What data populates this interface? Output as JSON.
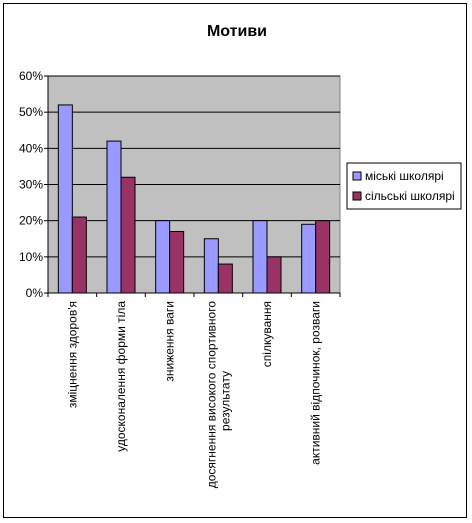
{
  "chart_data": {
    "type": "bar",
    "title": "Мотиви",
    "categories": [
      "зміцнення здоров'я",
      "удосконалення форми тіла",
      "зниження ваги",
      "досягнення високого спортивного результату",
      "спілкування",
      "активний відпочинок, розваги"
    ],
    "series": [
      {
        "name": "міські школярі",
        "values": [
          52,
          42,
          20,
          15,
          20,
          19
        ],
        "color": "#9999ff"
      },
      {
        "name": "сільські школярі",
        "values": [
          21,
          32,
          17,
          8,
          10,
          20
        ],
        "color": "#993366"
      }
    ],
    "y_ticks": [
      "0%",
      "10%",
      "20%",
      "30%",
      "40%",
      "50%",
      "60%"
    ],
    "ylim": [
      0,
      60
    ],
    "grid": true,
    "plot_background": "#c0c0c0",
    "legend_position": "right"
  }
}
